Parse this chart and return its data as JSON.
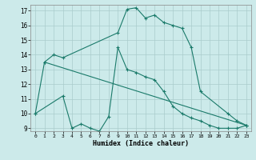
{
  "title": "",
  "xlabel": "Humidex (Indice chaleur)",
  "background_color": "#cceaea",
  "grid_color": "#aacccc",
  "line_color": "#1a7a6a",
  "xlim": [
    -0.5,
    23.5
  ],
  "ylim": [
    8.8,
    17.4
  ],
  "yticks": [
    9,
    10,
    11,
    12,
    13,
    14,
    15,
    16,
    17
  ],
  "xticks": [
    0,
    1,
    2,
    3,
    4,
    5,
    6,
    7,
    8,
    9,
    10,
    11,
    12,
    13,
    14,
    15,
    16,
    17,
    18,
    19,
    20,
    21,
    22,
    23
  ],
  "line1_x": [
    0,
    1,
    2,
    3,
    9,
    10,
    11,
    12,
    13,
    14,
    15,
    16,
    17,
    18,
    21,
    22,
    23
  ],
  "line1_y": [
    10.0,
    13.5,
    14.0,
    13.8,
    15.5,
    17.1,
    17.2,
    16.5,
    16.7,
    16.2,
    16.0,
    15.8,
    14.5,
    11.5,
    10.0,
    9.5,
    9.2
  ],
  "line2_x": [
    1,
    23
  ],
  "line2_y": [
    13.5,
    9.2
  ],
  "line3_x": [
    0,
    3,
    4,
    5,
    6,
    7,
    8,
    9,
    10,
    11,
    12,
    13,
    14,
    15,
    16,
    17,
    18,
    19,
    20,
    21,
    22,
    23
  ],
  "line3_y": [
    10.0,
    11.2,
    9.0,
    9.3,
    9.0,
    8.8,
    9.8,
    14.5,
    13.0,
    12.8,
    12.5,
    12.3,
    11.5,
    10.5,
    10.0,
    9.7,
    9.5,
    9.2,
    9.0,
    9.0,
    9.0,
    9.2
  ]
}
